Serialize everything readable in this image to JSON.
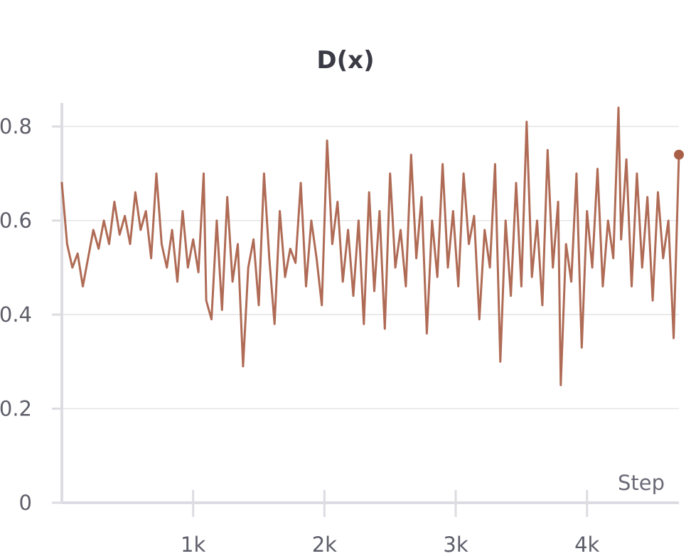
{
  "chart_data": {
    "type": "line",
    "title": "D(x)",
    "xlabel": "Step",
    "ylabel": "",
    "xlim": [
      0,
      4700
    ],
    "ylim": [
      0,
      0.85
    ],
    "x_ticks": [
      {
        "value": 1000,
        "label": "1k"
      },
      {
        "value": 2000,
        "label": "2k"
      },
      {
        "value": 3000,
        "label": "3k"
      },
      {
        "value": 4000,
        "label": "4k"
      }
    ],
    "y_ticks": [
      {
        "value": 0,
        "label": "0"
      },
      {
        "value": 0.2,
        "label": "0.2"
      },
      {
        "value": 0.4,
        "label": "0.4"
      },
      {
        "value": 0.6,
        "label": "0.6"
      },
      {
        "value": 0.8,
        "label": "0.8"
      }
    ],
    "grid": true,
    "series": [
      {
        "color": "#a85e47",
        "x": [
          0,
          40,
          80,
          120,
          160,
          200,
          240,
          280,
          320,
          360,
          400,
          440,
          480,
          520,
          560,
          600,
          640,
          680,
          720,
          760,
          800,
          840,
          880,
          920,
          960,
          1000,
          1040,
          1080,
          1100,
          1140,
          1180,
          1220,
          1260,
          1300,
          1340,
          1380,
          1420,
          1460,
          1500,
          1540,
          1580,
          1620,
          1660,
          1700,
          1740,
          1780,
          1820,
          1860,
          1900,
          1940,
          1980,
          2020,
          2060,
          2100,
          2140,
          2180,
          2220,
          2260,
          2300,
          2340,
          2380,
          2420,
          2460,
          2500,
          2540,
          2580,
          2620,
          2660,
          2700,
          2740,
          2780,
          2820,
          2860,
          2900,
          2940,
          2980,
          3020,
          3060,
          3100,
          3140,
          3180,
          3220,
          3260,
          3300,
          3340,
          3380,
          3420,
          3460,
          3500,
          3540,
          3580,
          3620,
          3660,
          3700,
          3740,
          3780,
          3800,
          3840,
          3880,
          3920,
          3960,
          4000,
          4040,
          4080,
          4120,
          4160,
          4200,
          4240,
          4260,
          4300,
          4340,
          4380,
          4420,
          4460,
          4500,
          4540,
          4580,
          4620,
          4660,
          4700
        ],
        "y": [
          0.68,
          0.55,
          0.5,
          0.53,
          0.46,
          0.52,
          0.58,
          0.54,
          0.6,
          0.55,
          0.64,
          0.57,
          0.61,
          0.55,
          0.66,
          0.58,
          0.62,
          0.52,
          0.7,
          0.55,
          0.5,
          0.58,
          0.47,
          0.62,
          0.5,
          0.56,
          0.49,
          0.7,
          0.43,
          0.39,
          0.6,
          0.41,
          0.65,
          0.47,
          0.55,
          0.29,
          0.5,
          0.56,
          0.42,
          0.7,
          0.52,
          0.38,
          0.62,
          0.48,
          0.54,
          0.51,
          0.68,
          0.46,
          0.6,
          0.52,
          0.42,
          0.77,
          0.55,
          0.64,
          0.47,
          0.58,
          0.44,
          0.6,
          0.38,
          0.66,
          0.45,
          0.62,
          0.37,
          0.7,
          0.5,
          0.58,
          0.46,
          0.74,
          0.52,
          0.65,
          0.36,
          0.6,
          0.48,
          0.72,
          0.5,
          0.62,
          0.46,
          0.7,
          0.55,
          0.61,
          0.39,
          0.58,
          0.5,
          0.72,
          0.3,
          0.6,
          0.44,
          0.68,
          0.46,
          0.81,
          0.48,
          0.6,
          0.42,
          0.75,
          0.5,
          0.64,
          0.25,
          0.55,
          0.47,
          0.7,
          0.33,
          0.62,
          0.5,
          0.71,
          0.46,
          0.6,
          0.52,
          0.84,
          0.56,
          0.73,
          0.46,
          0.7,
          0.5,
          0.65,
          0.43,
          0.66,
          0.52,
          0.6,
          0.35,
          0.74
        ]
      }
    ]
  }
}
